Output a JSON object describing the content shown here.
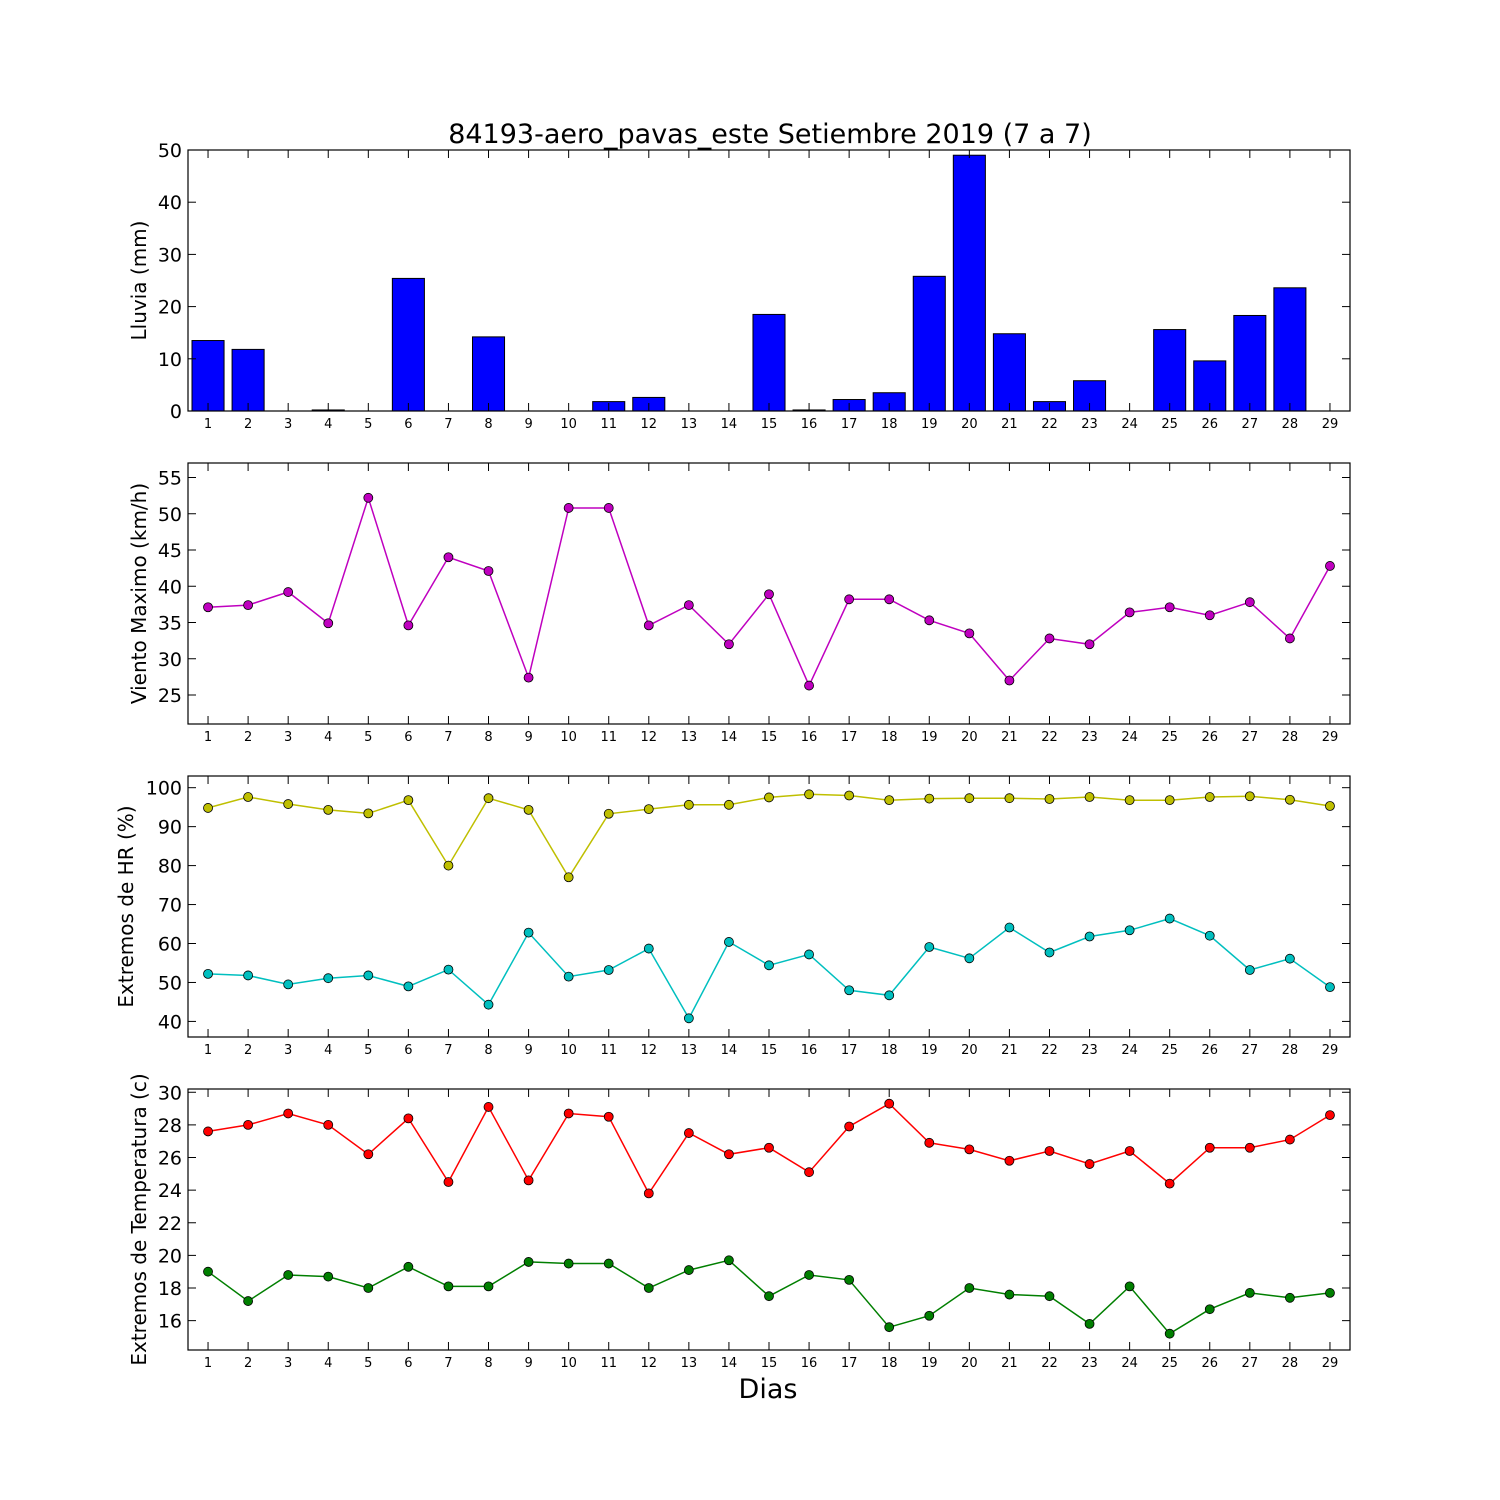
{
  "figure": {
    "title": "84193-aero_pavas_este Setiembre 2019  (7 a 7)",
    "xlabel": "Dias"
  },
  "chart_data": [
    {
      "type": "bar",
      "ylabel": "Lluvia (mm)",
      "ylim": [
        0,
        50
      ],
      "yticks": [
        0,
        10,
        20,
        30,
        40,
        50
      ],
      "x": [
        1,
        2,
        3,
        4,
        5,
        6,
        7,
        8,
        9,
        10,
        11,
        12,
        13,
        14,
        15,
        16,
        17,
        18,
        19,
        20,
        21,
        22,
        23,
        24,
        25,
        26,
        27,
        28,
        29
      ],
      "series": [
        {
          "color": "#0000ff",
          "values": [
            13.5,
            11.8,
            0,
            0.2,
            0,
            25.4,
            0,
            14.2,
            0,
            0,
            1.8,
            2.6,
            0,
            0,
            18.5,
            0.2,
            2.2,
            3.5,
            25.8,
            49.0,
            14.8,
            1.8,
            5.8,
            0,
            15.6,
            9.6,
            18.3,
            23.6,
            0
          ]
        }
      ],
      "grid": false
    },
    {
      "type": "line",
      "ylabel": "Viento Maximo (km/h)",
      "ylim": [
        21,
        57
      ],
      "yticks": [
        25,
        30,
        35,
        40,
        45,
        50,
        55
      ],
      "x": [
        1,
        2,
        3,
        4,
        5,
        6,
        7,
        8,
        9,
        10,
        11,
        12,
        13,
        14,
        15,
        16,
        17,
        18,
        19,
        20,
        21,
        22,
        23,
        24,
        25,
        26,
        27,
        28,
        29
      ],
      "series": [
        {
          "color": "#bf00bf",
          "values": [
            37.1,
            37.4,
            39.2,
            34.9,
            52.2,
            34.6,
            44.0,
            42.1,
            27.4,
            50.8,
            50.8,
            34.6,
            37.4,
            32.0,
            38.9,
            26.3,
            38.2,
            38.2,
            35.3,
            33.5,
            27.0,
            32.8,
            32.0,
            36.4,
            37.1,
            36.0,
            37.8,
            32.8,
            42.8
          ]
        }
      ],
      "grid": false
    },
    {
      "type": "line",
      "ylabel": "Extremos de HR (%)",
      "ylim": [
        36,
        103
      ],
      "yticks": [
        40,
        50,
        60,
        70,
        80,
        90,
        100
      ],
      "x": [
        1,
        2,
        3,
        4,
        5,
        6,
        7,
        8,
        9,
        10,
        11,
        12,
        13,
        14,
        15,
        16,
        17,
        18,
        19,
        20,
        21,
        22,
        23,
        24,
        25,
        26,
        27,
        28,
        29
      ],
      "series": [
        {
          "color": "#bfbf00",
          "values": [
            94.8,
            97.6,
            95.8,
            94.3,
            93.4,
            96.8,
            80.0,
            97.3,
            94.3,
            77.0,
            93.3,
            94.5,
            95.6,
            95.6,
            97.5,
            98.3,
            98.0,
            96.8,
            97.2,
            97.3,
            97.3,
            97.1,
            97.6,
            96.8,
            96.8,
            97.6,
            97.8,
            96.9,
            95.3
          ]
        },
        {
          "color": "#00bfbf",
          "values": [
            52.2,
            51.8,
            49.5,
            51.1,
            51.8,
            49.0,
            53.3,
            44.3,
            62.8,
            51.5,
            53.2,
            58.7,
            40.8,
            60.4,
            54.4,
            57.2,
            48.0,
            46.7,
            59.1,
            56.2,
            64.1,
            57.7,
            61.8,
            63.4,
            66.4,
            62.0,
            53.2,
            56.1,
            48.8
          ]
        }
      ],
      "grid": false
    },
    {
      "type": "line",
      "ylabel": "Extremos de Temperatura (c)",
      "ylim": [
        14.2,
        30.2
      ],
      "yticks": [
        16,
        18,
        20,
        22,
        24,
        26,
        28,
        30
      ],
      "x": [
        1,
        2,
        3,
        4,
        5,
        6,
        7,
        8,
        9,
        10,
        11,
        12,
        13,
        14,
        15,
        16,
        17,
        18,
        19,
        20,
        21,
        22,
        23,
        24,
        25,
        26,
        27,
        28,
        29
      ],
      "series": [
        {
          "color": "#ff0000",
          "values": [
            27.6,
            28.0,
            28.7,
            28.0,
            26.2,
            28.4,
            24.5,
            29.1,
            24.6,
            28.7,
            28.5,
            23.8,
            27.5,
            26.2,
            26.6,
            25.1,
            27.9,
            29.3,
            26.9,
            26.5,
            25.8,
            26.4,
            25.6,
            26.4,
            24.4,
            26.6,
            26.6,
            27.1,
            28.6
          ]
        },
        {
          "color": "#007f00",
          "values": [
            19.0,
            17.2,
            18.8,
            18.7,
            18.0,
            19.3,
            18.1,
            18.1,
            19.6,
            19.5,
            19.5,
            18.0,
            19.1,
            19.7,
            17.5,
            18.8,
            18.5,
            15.6,
            16.3,
            18.0,
            17.6,
            17.5,
            15.8,
            18.1,
            15.2,
            16.7,
            17.7,
            17.4,
            17.7
          ]
        }
      ],
      "grid": false
    }
  ]
}
